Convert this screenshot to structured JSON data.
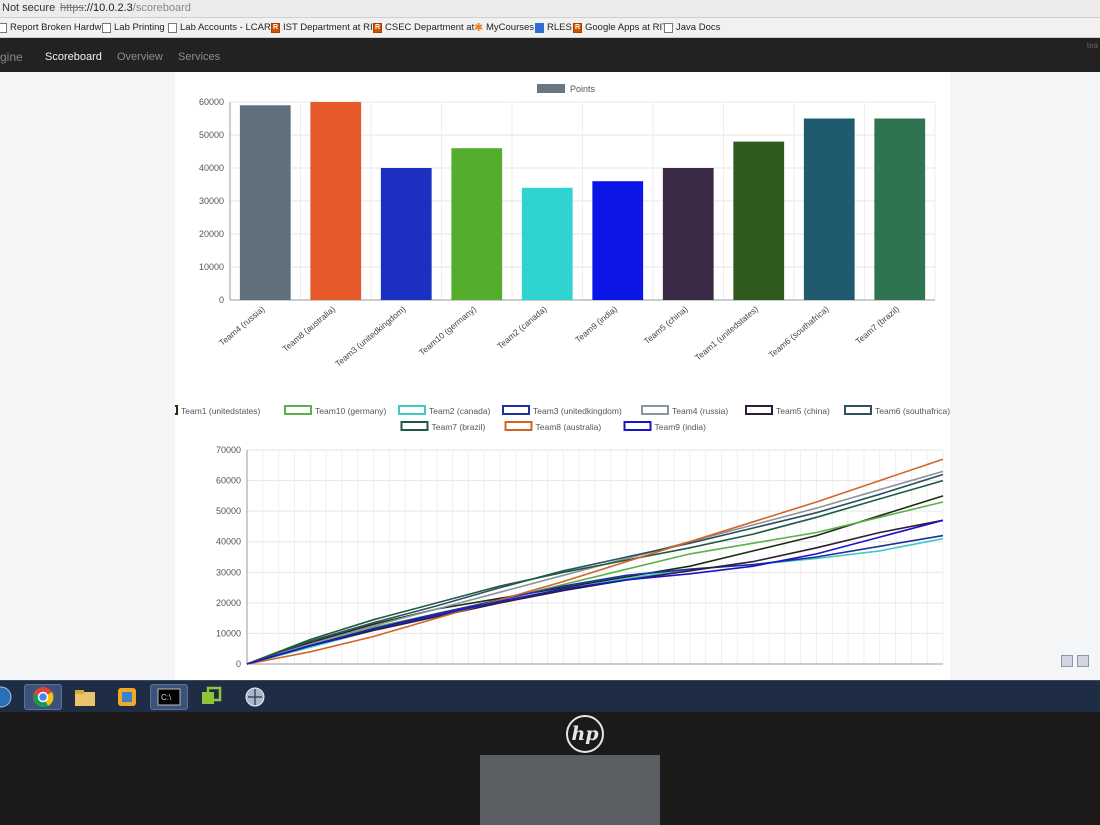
{
  "browser": {
    "security": "Not secure",
    "url_protocol": "https",
    "url_host": "://10.0.2.3",
    "url_path": "/scoreboard",
    "bookmarks": [
      {
        "label": "Report Broken Hardw",
        "icon": "page-icon"
      },
      {
        "label": "Lab Printing",
        "icon": "page-icon"
      },
      {
        "label": "Lab Accounts - LCARS",
        "icon": "page-icon"
      },
      {
        "label": "IST Department at RIT",
        "icon": "rit-icon"
      },
      {
        "label": "CSEC Department at",
        "icon": "rit-icon"
      },
      {
        "label": "MyCourses",
        "icon": "star-icon"
      },
      {
        "label": "RLES",
        "icon": "grid-icon"
      },
      {
        "label": "Google Apps at RIT",
        "icon": "rit-icon"
      },
      {
        "label": "Java Docs",
        "icon": "page-icon"
      }
    ]
  },
  "nav": {
    "brand": "gine",
    "tabs": [
      "Scoreboard",
      "Overview",
      "Services"
    ],
    "active_tab": "Scoreboard",
    "right_text": "tea"
  },
  "chart_data": [
    {
      "type": "bar",
      "legend": [
        "Points"
      ],
      "legend_position": "top-center",
      "categories": [
        "Team4 (russia)",
        "Team8 (australia)",
        "Team3 (unitedkingdom)",
        "Team10 (germany)",
        "Team2 (canada)",
        "Team9 (india)",
        "Team5 (china)",
        "Team1 (unitedstates)",
        "Team6 (southafrica)",
        "Team7 (brazil)"
      ],
      "series": [
        {
          "name": "Points",
          "values": [
            59000,
            60000,
            40000,
            46000,
            34000,
            36000,
            40000,
            48000,
            55000,
            55000
          ]
        }
      ],
      "colors": [
        "#5f6f7b",
        "#e7592a",
        "#1b2fc0",
        "#55ad2e",
        "#2fd3cf",
        "#0b16e6",
        "#3a2a45",
        "#2e5a1c",
        "#1f5a6e",
        "#2f7450"
      ],
      "yticks": [
        "0",
        "10000",
        "20000",
        "30000",
        "40000",
        "50000",
        "60000"
      ],
      "ylim": [
        0,
        60000
      ],
      "grid": true
    },
    {
      "type": "line",
      "legend_position": "top",
      "yticks": [
        "0",
        "10000",
        "20000",
        "30000",
        "40000",
        "50000",
        "60000",
        "70000"
      ],
      "ylim": [
        0,
        70000
      ],
      "grid": true,
      "series": [
        {
          "name": "Team1 (unitedstates)",
          "color": "#1e2c12",
          "values": [
            0,
            7000,
            13000,
            18000,
            21500,
            25000,
            28500,
            32000,
            37000,
            42000,
            48500,
            55000
          ]
        },
        {
          "name": "Team10 (germany)",
          "color": "#5cb04a",
          "values": [
            0,
            6500,
            12000,
            16500,
            21000,
            26000,
            31000,
            36000,
            39500,
            43000,
            48000,
            53000
          ]
        },
        {
          "name": "Team2 (canada)",
          "color": "#41c9c4",
          "values": [
            0,
            5500,
            11000,
            15500,
            20000,
            24500,
            28000,
            31000,
            32500,
            34500,
            37000,
            41000
          ]
        },
        {
          "name": "Team3 (unitedkingdom)",
          "color": "#1f2f9e",
          "values": [
            0,
            6000,
            11500,
            16500,
            21000,
            25500,
            29000,
            31000,
            32500,
            35000,
            38500,
            42000
          ]
        },
        {
          "name": "Team4 (russia)",
          "color": "#8c959b",
          "values": [
            0,
            6500,
            12500,
            18000,
            23500,
            29000,
            34500,
            40000,
            45500,
            51000,
            57000,
            63000
          ]
        },
        {
          "name": "Team5 (china)",
          "color": "#2e1d35",
          "values": [
            0,
            6000,
            11000,
            15500,
            20000,
            24000,
            27500,
            30500,
            33500,
            38000,
            43000,
            47000
          ]
        },
        {
          "name": "Team6 (southafrica)",
          "color": "#2e4f5e",
          "values": [
            0,
            7500,
            13500,
            19000,
            25000,
            30500,
            35000,
            39500,
            44500,
            49500,
            55500,
            62000
          ]
        },
        {
          "name": "Team7 (brazil)",
          "color": "#1d5c43",
          "values": [
            0,
            8000,
            14500,
            20000,
            25500,
            30000,
            34000,
            38000,
            42500,
            48000,
            54000,
            60000
          ]
        },
        {
          "name": "Team8 (australia)",
          "color": "#d16528",
          "values": [
            0,
            4000,
            9000,
            15000,
            21000,
            27000,
            33500,
            40000,
            46500,
            53000,
            60000,
            67000
          ]
        },
        {
          "name": "Team9 (india)",
          "color": "#1a14c8",
          "values": [
            0,
            6000,
            11500,
            16000,
            20500,
            24500,
            27500,
            29500,
            32000,
            36000,
            41500,
            47000
          ]
        }
      ]
    }
  ]
}
